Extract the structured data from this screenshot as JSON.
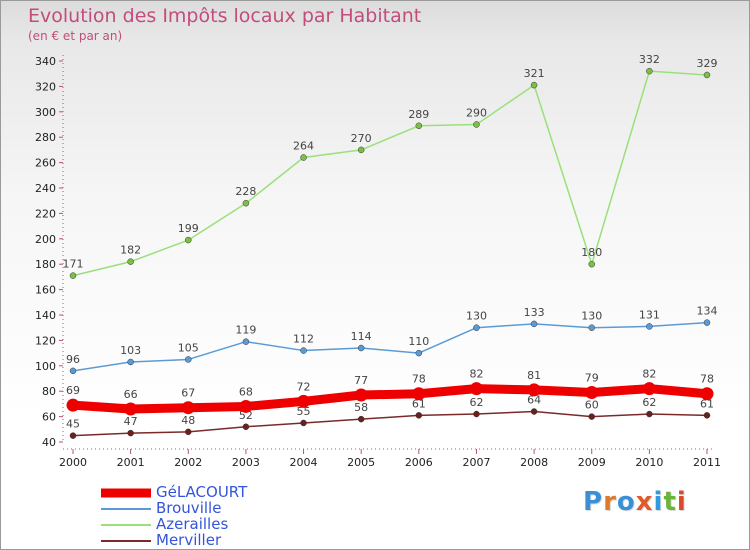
{
  "header": {
    "title": "Evolution des Impôts locaux par Habitant",
    "subtitle": "(en € et par an)"
  },
  "logo": {
    "text": "Proxiti",
    "letter_colors": [
      "#3b8fd6",
      "#e07a2a",
      "#3b8fd6",
      "#e05a2a",
      "#2e9be0",
      "#6bb33a",
      "#d94a2a"
    ]
  },
  "chart_data": {
    "type": "line",
    "title": "Evolution des Impôts locaux par Habitant",
    "subtitle": "(en € et par an)",
    "xlabel": "",
    "ylabel": "",
    "x": [
      "2000",
      "2001",
      "2002",
      "2003",
      "2004",
      "2005",
      "2006",
      "2007",
      "2008",
      "2009",
      "2010",
      "2011"
    ],
    "ylim": [
      40,
      340
    ],
    "yticks": [
      40,
      60,
      80,
      100,
      120,
      140,
      160,
      180,
      200,
      220,
      240,
      260,
      280,
      300,
      320,
      340
    ],
    "grid": false,
    "legend_position": "bottom-left",
    "series": [
      {
        "name": "GéLACOURT",
        "values": [
          69,
          66,
          67,
          68,
          72,
          77,
          78,
          82,
          81,
          79,
          82,
          78
        ],
        "color": "#ee0000",
        "emphasis": true
      },
      {
        "name": "Brouville",
        "values": [
          96,
          103,
          105,
          119,
          112,
          114,
          110,
          130,
          133,
          130,
          131,
          134
        ],
        "color": "#5b9bd5",
        "emphasis": false
      },
      {
        "name": "Azerailles",
        "values": [
          171,
          182,
          199,
          228,
          264,
          270,
          289,
          290,
          321,
          180,
          332,
          329
        ],
        "color": "#9ae07a",
        "marker_color": "#7bc043",
        "emphasis": false
      },
      {
        "name": "Merviller",
        "values": [
          45,
          47,
          48,
          52,
          55,
          58,
          61,
          62,
          64,
          60,
          62,
          61
        ],
        "color": "#7a2a2a",
        "marker_color": "#6b1f1f",
        "emphasis": false
      }
    ]
  }
}
